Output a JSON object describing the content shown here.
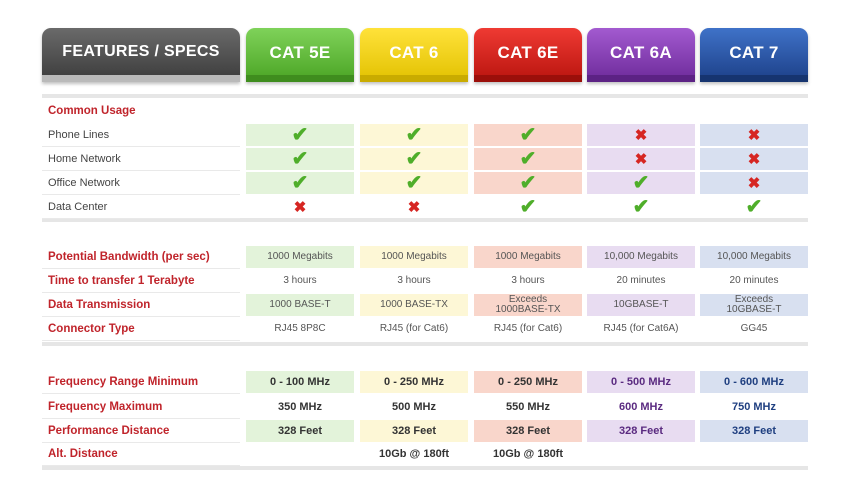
{
  "header": {
    "features": "FEATURES / SPECS",
    "columns": [
      "CAT 5E",
      "CAT 6",
      "CAT 6E",
      "CAT 6A",
      "CAT 7"
    ]
  },
  "colors": {
    "cat5e": "#4aa424",
    "cat6": "#e2c100",
    "cat6e": "#b9140e",
    "cat6a": "#6d2a9a",
    "cat7": "#1c3f87",
    "label_red": "#c0242b",
    "check": "#4fae2a",
    "cross": "#d62622"
  },
  "icons": {
    "yes": "check-icon",
    "no": "cross-icon"
  },
  "usage": {
    "title": "Common Usage",
    "rows": [
      {
        "label": "Phone Lines",
        "values": [
          "yes",
          "yes",
          "yes",
          "no",
          "no"
        ]
      },
      {
        "label": "Home Network",
        "values": [
          "yes",
          "yes",
          "yes",
          "no",
          "no"
        ]
      },
      {
        "label": "Office Network",
        "values": [
          "yes",
          "yes",
          "yes",
          "yes",
          "no"
        ]
      },
      {
        "label": "Data Center",
        "values": [
          "no",
          "no",
          "yes",
          "yes",
          "yes"
        ]
      }
    ]
  },
  "bandwidth": {
    "rows": [
      {
        "label": "Potential Bandwidth (per sec)",
        "values": [
          "1000 Megabits",
          "1000 Megabits",
          "1000 Megabits",
          "10,000 Megabits",
          "10,000 Megabits"
        ]
      },
      {
        "label": "Time to transfer 1 Terabyte",
        "values": [
          "3 hours",
          "3 hours",
          "3 hours",
          "20 minutes",
          "20 minutes"
        ]
      },
      {
        "label": "Data Transmission",
        "values": [
          "1000 BASE-T",
          "1000 BASE-TX",
          "Exceeds\n1000BASE-TX",
          "10GBASE-T",
          "Exceeds\n10GBASE-T"
        ]
      },
      {
        "label": "Connector Type",
        "values": [
          "RJ45 8P8C",
          "RJ45 (for Cat6)",
          "RJ45 (for Cat6)",
          "RJ45 (for Cat6A)",
          "GG45"
        ]
      }
    ]
  },
  "frequency": {
    "rows": [
      {
        "label": "Frequency Range Minimum",
        "values": [
          "0 - 100 MHz",
          "0 - 250 MHz",
          "0 - 250 MHz",
          "0 - 500 MHz",
          "0 - 600 MHz"
        ]
      },
      {
        "label": "Frequency Maximum",
        "values": [
          "350 MHz",
          "500 MHz",
          "550 MHz",
          "600 MHz",
          "750 MHz"
        ]
      },
      {
        "label": "Performance Distance",
        "values": [
          "328 Feet",
          "328 Feet",
          "328 Feet",
          "328 Feet",
          "328 Feet"
        ]
      },
      {
        "label": "Alt. Distance",
        "values": [
          "",
          "10Gb @ 180ft",
          "10Gb @ 180ft",
          "",
          ""
        ]
      }
    ]
  }
}
